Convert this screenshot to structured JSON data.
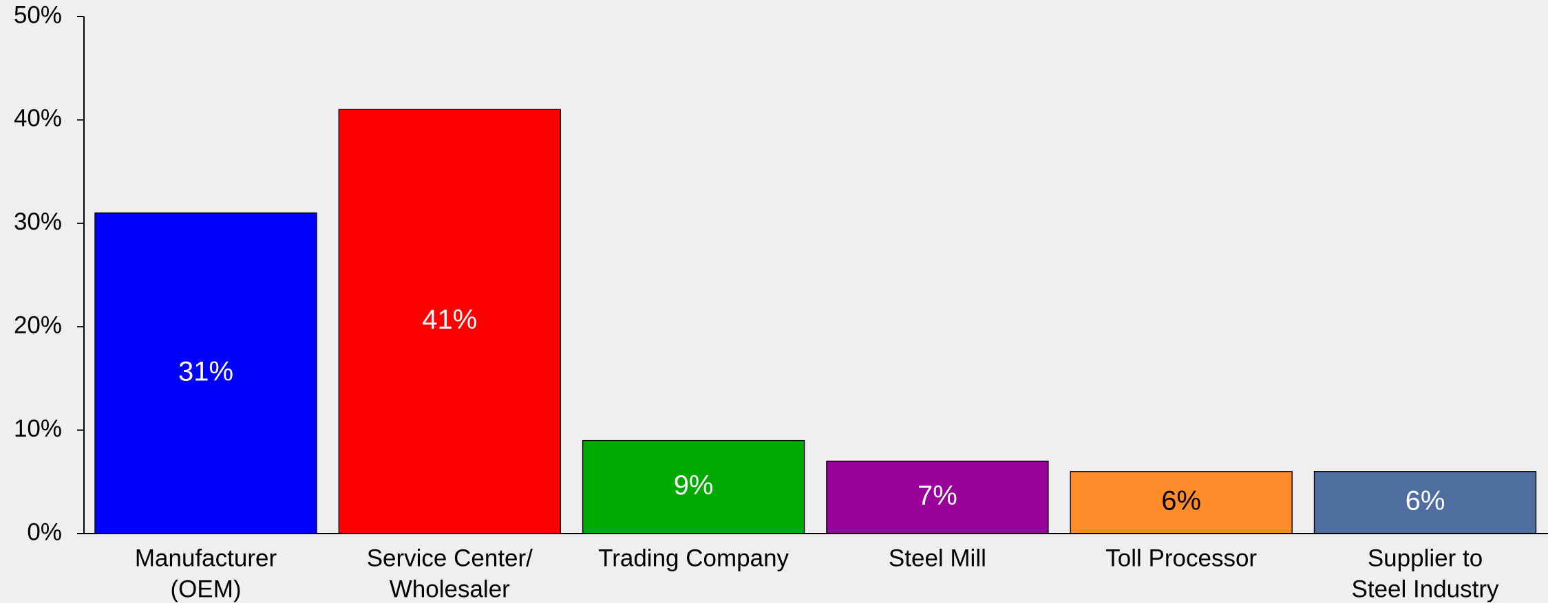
{
  "chart_data": {
    "type": "bar",
    "categories": [
      [
        "Manufacturer",
        "(OEM)"
      ],
      [
        "Service Center/",
        "Wholesaler"
      ],
      [
        "Trading Company"
      ],
      [
        "Steel Mill"
      ],
      [
        "Toll Processor"
      ],
      [
        "Supplier to",
        "Steel Industry"
      ]
    ],
    "values": [
      31,
      41,
      9,
      7,
      6,
      6
    ],
    "value_labels": [
      "31%",
      "41%",
      "9%",
      "7%",
      "6%",
      "6%"
    ],
    "colors": [
      "#0000ff",
      "#ff0000",
      "#00aa00",
      "#990099",
      "#ff8c29",
      "#4d6e9e"
    ],
    "label_colors": [
      "#ffffff",
      "#ffffff",
      "#ffffff",
      "#ffffff",
      "#000000",
      "#ffffff"
    ],
    "ylim": [
      0,
      50
    ],
    "yticks": [
      {
        "value": 0,
        "label": "0%"
      },
      {
        "value": 10,
        "label": "10%"
      },
      {
        "value": 20,
        "label": "20%"
      },
      {
        "value": 30,
        "label": "30%"
      },
      {
        "value": 40,
        "label": "40%"
      },
      {
        "value": 50,
        "label": "50%"
      }
    ]
  }
}
